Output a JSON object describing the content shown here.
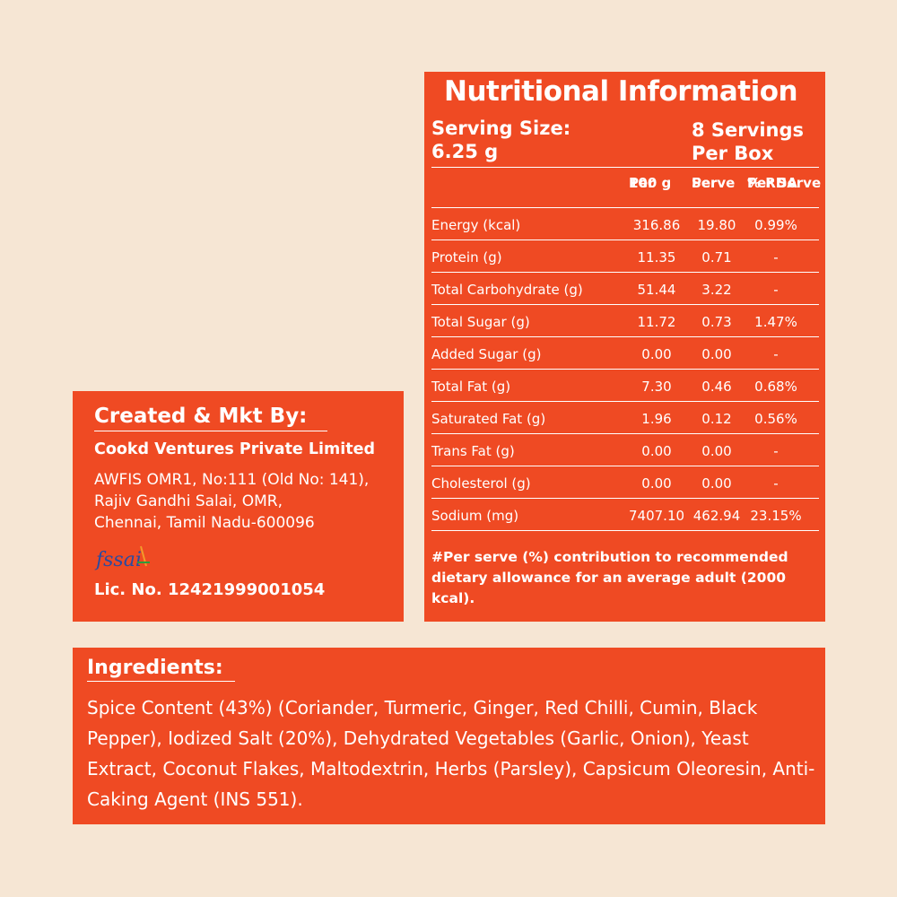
{
  "nutrition": {
    "title": "Nutritional Information",
    "serving_size_label": "Serving Size:",
    "serving_size_value": "6.25 g",
    "servings_line1": "8 Servings",
    "servings_line2": "Per Box",
    "columns": {
      "per100_l1": "Per",
      "per100_l2": "100 g",
      "perserve_l1": "Per",
      "perserve_l2": "Serve",
      "rda_l1": "% RDA",
      "rda_l2": "Per Serve"
    },
    "rows": [
      {
        "name": "Energy (kcal)",
        "per100": "316.86",
        "serve": "19.80",
        "rda": "0.99%"
      },
      {
        "name": "Protein (g)",
        "per100": "11.35",
        "serve": "0.71",
        "rda": "-"
      },
      {
        "name": "Total Carbohydrate (g)",
        "per100": "51.44",
        "serve": "3.22",
        "rda": "-"
      },
      {
        "name": "Total Sugar (g)",
        "per100": "11.72",
        "serve": "0.73",
        "rda": "1.47%"
      },
      {
        "name": "Added Sugar (g)",
        "per100": "0.00",
        "serve": "0.00",
        "rda": "-"
      },
      {
        "name": "Total Fat (g)",
        "per100": "7.30",
        "serve": "0.46",
        "rda": "0.68%"
      },
      {
        "name": "Saturated Fat (g)",
        "per100": "1.96",
        "serve": "0.12",
        "rda": "0.56%"
      },
      {
        "name": "Trans Fat (g)",
        "per100": "0.00",
        "serve": "0.00",
        "rda": "-"
      },
      {
        "name": "Cholesterol (g)",
        "per100": "0.00",
        "serve": "0.00",
        "rda": "-"
      },
      {
        "name": "Sodium (mg)",
        "per100": "7407.10",
        "serve": "462.94",
        "rda": "23.15%"
      }
    ],
    "footnote": "#Per serve (%) contribution to recommended dietary allowance for an average adult (2000 kcal)."
  },
  "created": {
    "heading": "Created & Mkt By:",
    "company": "Cookd Ventures Private Limited",
    "address_line1": "AWFIS OMR1, No:111 (Old No: 141),",
    "address_line2": "Rajiv Gandhi Salai, OMR,",
    "address_line3": "Chennai, Tamil Nadu-600096",
    "fssai_logo_text": "fssai",
    "license": "Lic. No. 12421999001054"
  },
  "ingredients": {
    "heading": "Ingredients:",
    "text": "Spice Content (43%) (Coriander, Turmeric, Ginger, Red Chilli, Cumin, Black Pepper), Iodized Salt (20%), Dehydrated Vegetables (Garlic, Onion), Yeast Extract, Coconut Flakes, Maltodextrin, Herbs (Parsley), Capsicum Oleoresin, Anti-Caking Agent (INS 551)."
  },
  "colors": {
    "background": "#f6e6d4",
    "panel": "#ef4a23",
    "text": "#ffffff"
  }
}
